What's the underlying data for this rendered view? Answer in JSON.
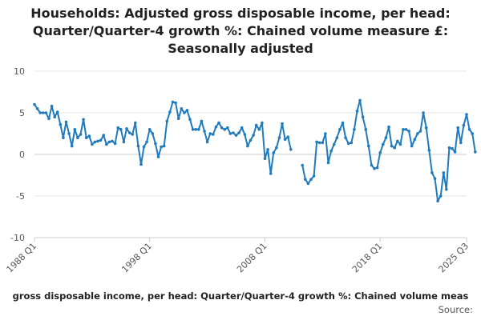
{
  "chart_data": {
    "type": "line",
    "title_lines": [
      "Households: Adjusted gross disposable income, per head:",
      "Quarter/Quarter-4 growth %: Chained volume measure £:",
      "Seasonally adjusted"
    ],
    "series_name": "Households: Adjusted gross disposable income, per head: Quarter/Quarter-4 growth %: Chained volume measure £: Seasonally adjusted",
    "legend_text": "gross disposable income, per head: Quarter/Quarter-4 growth %: Chained volume meas",
    "source_label": "Source:",
    "ylim": [
      -10,
      10
    ],
    "yticks": [
      10,
      5,
      0,
      -5,
      -10
    ],
    "xlim": [
      1988.0,
      2025.5
    ],
    "xticks": [
      {
        "label": "1988 Q1",
        "x": 1988.0
      },
      {
        "label": "1998 Q1",
        "x": 1998.0
      },
      {
        "label": "2008 Q1",
        "x": 2008.0
      },
      {
        "label": "2018 Q1",
        "x": 2018.0
      },
      {
        "label": "2025 Q3",
        "x": 2025.5
      }
    ],
    "start_year": 1988,
    "start_quarter": 1,
    "values": [
      6.0,
      5.5,
      5.0,
      5.0,
      5.0,
      4.3,
      5.8,
      4.5,
      5.1,
      3.6,
      2.0,
      3.9,
      2.5,
      1.0,
      3.0,
      2.0,
      2.4,
      4.2,
      2.0,
      2.2,
      1.2,
      1.5,
      1.6,
      1.7,
      2.3,
      1.2,
      1.5,
      1.6,
      1.3,
      3.2,
      3.0,
      1.5,
      3.1,
      2.6,
      2.4,
      3.8,
      1.0,
      -1.2,
      0.9,
      1.5,
      3.0,
      2.5,
      1.3,
      -0.3,
      0.9,
      1.0,
      4.0,
      5.1,
      6.3,
      6.2,
      4.3,
      5.5,
      5.0,
      5.3,
      4.2,
      3.0,
      3.0,
      3.0,
      4.0,
      2.8,
      1.5,
      2.5,
      2.4,
      3.3,
      3.8,
      3.2,
      3.0,
      3.2,
      2.5,
      2.6,
      2.3,
      2.6,
      3.2,
      2.4,
      1.0,
      1.7,
      2.3,
      3.5,
      3.0,
      3.8,
      -0.5,
      0.6,
      -2.3,
      0.2,
      0.8,
      2.0,
      3.7,
      1.8,
      2.1,
      0.6,
      null,
      null,
      null,
      -1.3,
      -3.0,
      -3.5,
      -3.0,
      -2.6,
      1.5,
      1.4,
      1.4,
      2.5,
      -1.0,
      0.4,
      1.2,
      2.0,
      3.0,
      3.8,
      2.0,
      1.3,
      1.4,
      3.0,
      5.2,
      6.5,
      4.5,
      3.0,
      1.0,
      -1.3,
      -1.7,
      -1.6,
      0.2,
      1.2,
      2.0,
      3.3,
      1.0,
      0.8,
      1.6,
      1.2,
      3.0,
      3.0,
      2.8,
      1.0,
      1.8,
      2.5,
      2.8,
      5.0,
      3.2,
      0.5,
      -2.2,
      -2.9,
      -5.6,
      -5.0,
      -2.2,
      -4.2,
      0.8,
      0.7,
      0.3,
      3.2,
      1.4,
      3.5,
      4.8,
      3.0,
      2.5,
      0.3
    ]
  }
}
